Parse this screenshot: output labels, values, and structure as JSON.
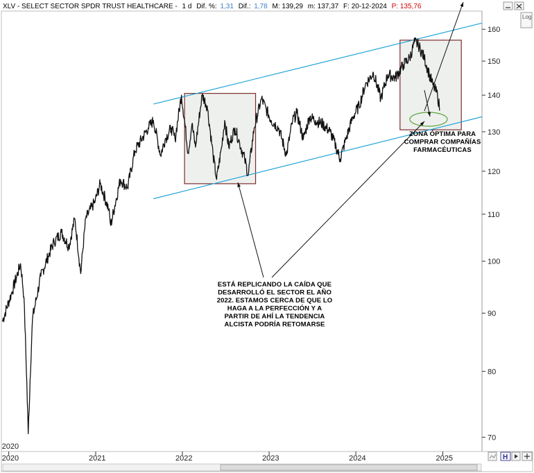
{
  "header": {
    "symbol": "XLV - SELECT SECTOR SPDR TRUST HEALTHCARE -",
    "period": "1 d",
    "dif_pct_label": "Dif. %:",
    "dif_pct_value": "1,31",
    "dif_label": "Dif.:",
    "dif_value": "1,78",
    "max_label": "M: 139,29",
    "min_label": "m: 137,37",
    "date_label": "F: 20-12-2024",
    "price_label": "P: 135,76"
  },
  "controls": {
    "log_label": "Log"
  },
  "colors": {
    "channel": "#22a6d6",
    "box_border": "#7b2b2b",
    "box_fill": "#eef0ee",
    "zone_ellipse": "#5aa43a",
    "dif_blue": "#3b7fc4",
    "price_red": "#d00000"
  },
  "chart_data": {
    "type": "line",
    "scale": "log",
    "ylim": [
      68,
      166
    ],
    "xlim": [
      "2019-12-01",
      "2025-06-15"
    ],
    "y_ticks": [
      70,
      80,
      90,
      100,
      110,
      120,
      130,
      140,
      150,
      160
    ],
    "x_ticks": [
      {
        "label": "2020",
        "date": "2020-01-01"
      },
      {
        "label": "2021",
        "date": "2021-01-01"
      },
      {
        "label": "2022",
        "date": "2022-01-01"
      },
      {
        "label": "2023",
        "date": "2023-01-01"
      },
      {
        "label": "2024",
        "date": "2024-01-01"
      },
      {
        "label": "2025",
        "date": "2025-01-01"
      }
    ],
    "year_marker": "2020",
    "series": [
      {
        "points": [
          [
            "2019-12-05",
            88.5
          ],
          [
            "2020-01-15",
            94
          ],
          [
            "2020-02-20",
            99.5
          ],
          [
            "2020-03-05",
            93
          ],
          [
            "2020-03-23",
            70.5
          ],
          [
            "2020-04-10",
            89
          ],
          [
            "2020-05-15",
            97
          ],
          [
            "2020-06-15",
            101
          ],
          [
            "2020-07-10",
            104
          ],
          [
            "2020-08-10",
            106
          ],
          [
            "2020-09-10",
            103
          ],
          [
            "2020-10-05",
            109
          ],
          [
            "2020-10-30",
            97.5
          ],
          [
            "2020-11-20",
            109
          ],
          [
            "2020-12-30",
            113
          ],
          [
            "2021-01-20",
            117
          ],
          [
            "2021-02-25",
            111
          ],
          [
            "2021-03-05",
            107.5
          ],
          [
            "2021-04-15",
            118
          ],
          [
            "2021-05-15",
            116
          ],
          [
            "2021-06-15",
            125
          ],
          [
            "2021-08-10",
            131
          ],
          [
            "2021-09-01",
            133
          ],
          [
            "2021-10-01",
            124
          ],
          [
            "2021-10-20",
            128
          ],
          [
            "2021-11-15",
            131
          ],
          [
            "2021-12-01",
            128
          ],
          [
            "2021-12-28",
            140
          ],
          [
            "2022-01-25",
            124.5
          ],
          [
            "2022-02-10",
            132
          ],
          [
            "2022-02-25",
            126
          ],
          [
            "2022-03-25",
            140
          ],
          [
            "2022-04-15",
            137
          ],
          [
            "2022-05-10",
            124
          ],
          [
            "2022-05-25",
            118
          ],
          [
            "2022-06-15",
            126
          ],
          [
            "2022-06-28",
            133
          ],
          [
            "2022-07-15",
            126
          ],
          [
            "2022-08-10",
            131
          ],
          [
            "2022-08-30",
            127
          ],
          [
            "2022-09-20",
            123
          ],
          [
            "2022-10-05",
            119
          ],
          [
            "2022-10-30",
            131
          ],
          [
            "2022-11-30",
            139
          ],
          [
            "2022-12-20",
            136
          ],
          [
            "2023-01-10",
            133
          ],
          [
            "2023-02-10",
            131
          ],
          [
            "2023-03-15",
            124
          ],
          [
            "2023-04-10",
            133
          ],
          [
            "2023-04-28",
            135
          ],
          [
            "2023-05-25",
            128
          ],
          [
            "2023-06-20",
            134
          ],
          [
            "2023-07-15",
            133
          ],
          [
            "2023-08-15",
            132
          ],
          [
            "2023-09-15",
            130
          ],
          [
            "2023-10-10",
            126
          ],
          [
            "2023-10-27",
            123
          ],
          [
            "2023-11-20",
            128
          ],
          [
            "2023-12-20",
            134
          ],
          [
            "2024-01-15",
            137
          ],
          [
            "2024-02-10",
            143
          ],
          [
            "2024-03-15",
            146.5
          ],
          [
            "2024-04-15",
            139
          ],
          [
            "2024-05-15",
            146
          ],
          [
            "2024-06-15",
            145
          ],
          [
            "2024-07-20",
            149
          ],
          [
            "2024-08-15",
            151
          ],
          [
            "2024-09-05",
            156
          ],
          [
            "2024-09-20",
            155
          ],
          [
            "2024-10-15",
            151
          ],
          [
            "2024-11-05",
            146
          ],
          [
            "2024-11-20",
            143
          ],
          [
            "2024-12-10",
            140
          ],
          [
            "2024-12-20",
            135.8
          ]
        ]
      }
    ],
    "channel_lines": [
      {
        "from": [
          "2021-09-01",
          137.5
        ],
        "to": [
          "2025-06-15",
          162
        ]
      },
      {
        "from": [
          "2021-09-01",
          113.5
        ],
        "to": [
          "2025-06-15",
          134
        ]
      }
    ],
    "boxes": [
      {
        "x0": "2022-01-10",
        "x1": "2022-11-05",
        "y0": 117,
        "y1": 140.5
      },
      {
        "x0": "2024-07-05",
        "x1": "2025-03-20",
        "y0": 130.5,
        "y1": 156.5
      }
    ],
    "annotations": [
      {
        "lines": [
          "ESTÁ REPLICANDO LA CAÍDA QUE",
          "DESARROLLÓ EL SECTOR EL AÑO",
          "2022. ESTAMOS CERCA DE QUE LO",
          "HAGA A LA PERFECCIÓN Y A",
          "PARTIR DE AHÍ LA TENDENCIA",
          "ALCISTA PODRÍA RETOMARSE"
        ]
      },
      {
        "lines": [
          "ZONA ÓPTIMA PARA",
          "COMPRAR COMPAÑÍAS",
          "FARMACÉUTICAS"
        ]
      }
    ]
  }
}
